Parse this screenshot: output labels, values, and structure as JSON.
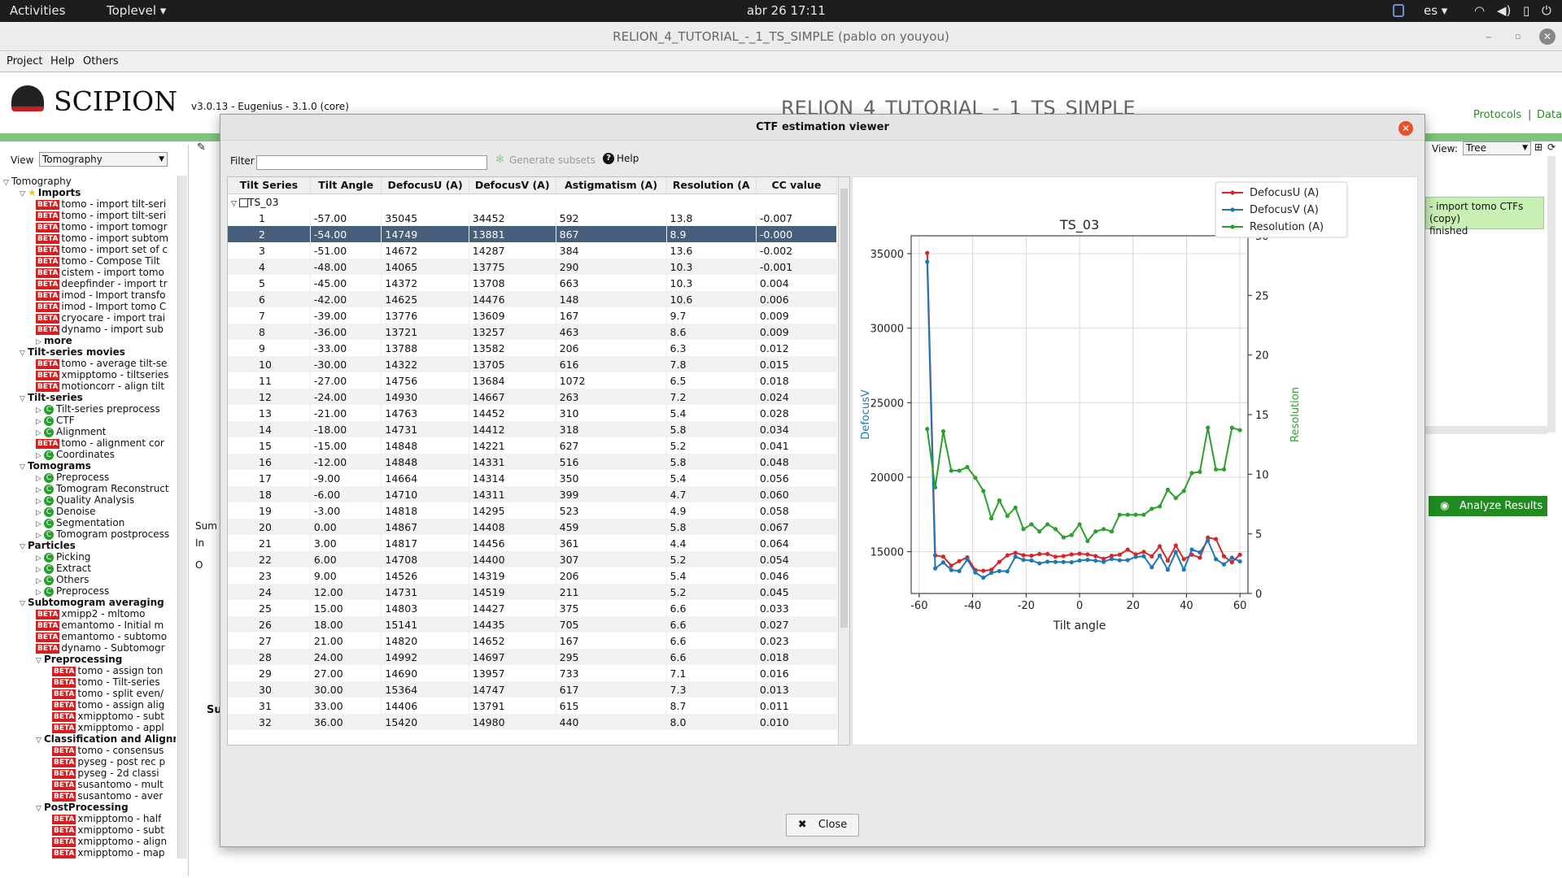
{
  "topbar": {
    "activities": "Activities",
    "app": "Toplevel ▾",
    "clock": "abr 26  17:11",
    "lang": "es ▾"
  },
  "window": {
    "title": "RELION_4_TUTORIAL_-_1_TS_SIMPLE (pablo on youyou)"
  },
  "menu": {
    "project": "Project",
    "help": "Help",
    "others": "Others"
  },
  "header": {
    "logo": "SCIPION",
    "version": "v3.0.13 - Eugenius - 3.1.0 (core)",
    "project_title": "RELION_4_TUTORIAL_-_1_TS_SIMPLE",
    "protocols": "Protocols",
    "sep": "|",
    "data": "Data"
  },
  "left": {
    "view_label": "View",
    "view_value": "Tomography"
  },
  "right": {
    "view_label": "View:",
    "view_value": "Tree",
    "node_text": "- import tomo CTFs (copy)\nfinished",
    "analyze": "Analyze Results",
    "sum": "Sum",
    "in": "In",
    "o": "O",
    "s": "Su"
  },
  "tree": [
    {
      "lvl": 0,
      "tri": "▽",
      "text": "Tomography"
    },
    {
      "lvl": 1,
      "tri": "▽",
      "icon": "star",
      "text": "Imports",
      "bold": true
    },
    {
      "lvl": 2,
      "beta": true,
      "text": "tomo - import tilt-seri"
    },
    {
      "lvl": 2,
      "beta": true,
      "text": "tomo - import tilt-seri"
    },
    {
      "lvl": 2,
      "beta": true,
      "text": "tomo - import tomogr"
    },
    {
      "lvl": 2,
      "beta": true,
      "text": "tomo - import subtom"
    },
    {
      "lvl": 2,
      "beta": true,
      "text": "tomo - import set of c"
    },
    {
      "lvl": 2,
      "beta": true,
      "text": "tomo - Compose Tilt"
    },
    {
      "lvl": 2,
      "beta": true,
      "text": "cistem - import tomo"
    },
    {
      "lvl": 2,
      "beta": true,
      "text": "deepfinder - import tr"
    },
    {
      "lvl": 2,
      "beta": true,
      "text": "imod - Import transfo"
    },
    {
      "lvl": 2,
      "beta": true,
      "text": "imod - Import tomo C"
    },
    {
      "lvl": 2,
      "beta": true,
      "text": "cryocare - import trai"
    },
    {
      "lvl": 2,
      "beta": true,
      "text": "dynamo - import sub"
    },
    {
      "lvl": 2,
      "tri": "▷",
      "text": "more",
      "bold": true
    },
    {
      "lvl": 1,
      "tri": "▽",
      "text": "Tilt-series movies",
      "bold": true
    },
    {
      "lvl": 2,
      "beta": true,
      "text": "tomo - average tilt-se"
    },
    {
      "lvl": 2,
      "beta": true,
      "text": "xmipptomo - tiltseries"
    },
    {
      "lvl": 2,
      "beta": true,
      "text": "motioncorr - align tilt"
    },
    {
      "lvl": 1,
      "tri": "▽",
      "text": "Tilt-series",
      "bold": true
    },
    {
      "lvl": 2,
      "tri": "▷",
      "c": true,
      "text": "Tilt-series preprocess"
    },
    {
      "lvl": 2,
      "tri": "▷",
      "c": true,
      "text": "CTF"
    },
    {
      "lvl": 2,
      "tri": "▷",
      "c": true,
      "text": "Alignment"
    },
    {
      "lvl": 2,
      "beta": true,
      "text": "tomo - alignment cor"
    },
    {
      "lvl": 2,
      "tri": "▷",
      "c": true,
      "text": "Coordinates"
    },
    {
      "lvl": 1,
      "tri": "▽",
      "text": "Tomograms",
      "bold": true
    },
    {
      "lvl": 2,
      "tri": "▷",
      "c": true,
      "text": "Preprocess"
    },
    {
      "lvl": 2,
      "tri": "▷",
      "c": true,
      "text": "Tomogram Reconstruct"
    },
    {
      "lvl": 2,
      "tri": "▷",
      "c": true,
      "text": "Quality Analysis"
    },
    {
      "lvl": 2,
      "tri": "▷",
      "c": true,
      "text": "Denoise"
    },
    {
      "lvl": 2,
      "tri": "▷",
      "c": true,
      "text": "Segmentation"
    },
    {
      "lvl": 2,
      "tri": "▷",
      "c": true,
      "text": "Tomogram postprocess"
    },
    {
      "lvl": 1,
      "tri": "▽",
      "text": "Particles",
      "bold": true
    },
    {
      "lvl": 2,
      "tri": "▷",
      "c": true,
      "text": "Picking"
    },
    {
      "lvl": 2,
      "tri": "▷",
      "c": true,
      "text": "Extract"
    },
    {
      "lvl": 2,
      "tri": "▷",
      "c": true,
      "text": "Others"
    },
    {
      "lvl": 2,
      "tri": "▷",
      "c": true,
      "text": "Preprocess"
    },
    {
      "lvl": 1,
      "tri": "▽",
      "text": "Subtomogram averaging",
      "bold": true
    },
    {
      "lvl": 2,
      "beta": true,
      "text": "xmipp2 - mltomo"
    },
    {
      "lvl": 2,
      "beta": true,
      "text": "emantomo - Initial m"
    },
    {
      "lvl": 2,
      "beta": true,
      "text": "emantomo - subtomo"
    },
    {
      "lvl": 2,
      "beta": true,
      "text": "dynamo - Subtomogr"
    },
    {
      "lvl": 2,
      "tri": "▽",
      "text": "Preprocessing",
      "bold": true
    },
    {
      "lvl": 3,
      "beta": true,
      "text": "tomo - assign ton"
    },
    {
      "lvl": 3,
      "beta": true,
      "text": "tomo - Tilt-series"
    },
    {
      "lvl": 3,
      "beta": true,
      "text": "tomo - split even/"
    },
    {
      "lvl": 3,
      "beta": true,
      "text": "tomo - assign alig"
    },
    {
      "lvl": 3,
      "beta": true,
      "text": "xmipptomo - subt"
    },
    {
      "lvl": 3,
      "beta": true,
      "text": "xmipptomo - appl"
    },
    {
      "lvl": 2,
      "tri": "▽",
      "text": "Classification and Alignm",
      "bold": true
    },
    {
      "lvl": 3,
      "beta": true,
      "text": "tomo - consensus"
    },
    {
      "lvl": 3,
      "beta": true,
      "text": "pyseg - post rec p"
    },
    {
      "lvl": 3,
      "beta": true,
      "text": "pyseg - 2d classi"
    },
    {
      "lvl": 3,
      "beta": true,
      "text": "susantomo - mult"
    },
    {
      "lvl": 3,
      "beta": true,
      "text": "susantomo - aver"
    },
    {
      "lvl": 2,
      "tri": "▽",
      "text": "PostProcessing",
      "bold": true
    },
    {
      "lvl": 3,
      "beta": true,
      "text": "xmipptomo - half"
    },
    {
      "lvl": 3,
      "beta": true,
      "text": "xmipptomo - subt"
    },
    {
      "lvl": 3,
      "beta": true,
      "text": "xmipptomo - align"
    },
    {
      "lvl": 3,
      "beta": true,
      "text": "xmipptomo - map"
    }
  ],
  "beta_label": "BETA",
  "c_label": "C",
  "dialog": {
    "title": "CTF estimation viewer",
    "filter_label": "Filter",
    "filter_value": "",
    "generate": "Generate subsets",
    "help": "Help",
    "close": "Close"
  },
  "table": {
    "headers": [
      "Tilt Series",
      "Tilt Angle",
      "DefocusU (A)",
      "DefocusV (A)",
      "Astigmatism (A)",
      "Resolution (A",
      "CC value"
    ],
    "group": "TS_03",
    "rows": [
      [
        "1",
        "-57.00",
        "35045",
        "34452",
        "592",
        "13.8",
        "-0.007"
      ],
      [
        "2",
        "-54.00",
        "14749",
        "13881",
        "867",
        "8.9",
        "-0.000"
      ],
      [
        "3",
        "-51.00",
        "14672",
        "14287",
        "384",
        "13.6",
        "-0.002"
      ],
      [
        "4",
        "-48.00",
        "14065",
        "13775",
        "290",
        "10.3",
        "-0.001"
      ],
      [
        "5",
        "-45.00",
        "14372",
        "13708",
        "663",
        "10.3",
        "0.004"
      ],
      [
        "6",
        "-42.00",
        "14625",
        "14476",
        "148",
        "10.6",
        "0.006"
      ],
      [
        "7",
        "-39.00",
        "13776",
        "13609",
        "167",
        "9.7",
        "0.009"
      ],
      [
        "8",
        "-36.00",
        "13721",
        "13257",
        "463",
        "8.6",
        "0.009"
      ],
      [
        "9",
        "-33.00",
        "13788",
        "13582",
        "206",
        "6.3",
        "0.012"
      ],
      [
        "10",
        "-30.00",
        "14322",
        "13705",
        "616",
        "7.8",
        "0.015"
      ],
      [
        "11",
        "-27.00",
        "14756",
        "13684",
        "1072",
        "6.5",
        "0.018"
      ],
      [
        "12",
        "-24.00",
        "14930",
        "14667",
        "263",
        "7.2",
        "0.024"
      ],
      [
        "13",
        "-21.00",
        "14763",
        "14452",
        "310",
        "5.4",
        "0.028"
      ],
      [
        "14",
        "-18.00",
        "14731",
        "14412",
        "318",
        "5.8",
        "0.034"
      ],
      [
        "15",
        "-15.00",
        "14848",
        "14221",
        "627",
        "5.2",
        "0.041"
      ],
      [
        "16",
        "-12.00",
        "14848",
        "14331",
        "516",
        "5.8",
        "0.048"
      ],
      [
        "17",
        "-9.00",
        "14664",
        "14314",
        "350",
        "5.4",
        "0.056"
      ],
      [
        "18",
        "-6.00",
        "14710",
        "14311",
        "399",
        "4.7",
        "0.060"
      ],
      [
        "19",
        "-3.00",
        "14818",
        "14295",
        "523",
        "4.9",
        "0.058"
      ],
      [
        "20",
        "0.00",
        "14867",
        "14408",
        "459",
        "5.8",
        "0.067"
      ],
      [
        "21",
        "3.00",
        "14817",
        "14456",
        "361",
        "4.4",
        "0.064"
      ],
      [
        "22",
        "6.00",
        "14708",
        "14400",
        "307",
        "5.2",
        "0.054"
      ],
      [
        "23",
        "9.00",
        "14526",
        "14319",
        "206",
        "5.4",
        "0.046"
      ],
      [
        "24",
        "12.00",
        "14731",
        "14519",
        "211",
        "5.2",
        "0.045"
      ],
      [
        "25",
        "15.00",
        "14803",
        "14427",
        "375",
        "6.6",
        "0.033"
      ],
      [
        "26",
        "18.00",
        "15141",
        "14435",
        "705",
        "6.6",
        "0.027"
      ],
      [
        "27",
        "21.00",
        "14820",
        "14652",
        "167",
        "6.6",
        "0.023"
      ],
      [
        "28",
        "24.00",
        "14992",
        "14697",
        "295",
        "6.6",
        "0.018"
      ],
      [
        "29",
        "27.00",
        "14690",
        "13957",
        "733",
        "7.1",
        "0.016"
      ],
      [
        "30",
        "30.00",
        "15364",
        "14747",
        "617",
        "7.3",
        "0.013"
      ],
      [
        "31",
        "33.00",
        "14406",
        "13791",
        "615",
        "8.7",
        "0.011"
      ],
      [
        "32",
        "36.00",
        "15420",
        "14980",
        "440",
        "8.0",
        "0.010"
      ]
    ],
    "selected_row": 1
  },
  "chart_data": {
    "type": "line",
    "title": "TS_03",
    "xlabel": "Tilt angle",
    "ylabel": "DefocusV",
    "y2label": "Resolution",
    "xlim": [
      -63,
      63
    ],
    "xticks": [
      -60,
      -40,
      -20,
      0,
      20,
      40,
      60
    ],
    "ylim": [
      12200,
      36200
    ],
    "yticks": [
      15000,
      20000,
      25000,
      30000,
      35000
    ],
    "y2lim": [
      0,
      30
    ],
    "y2ticks": [
      0,
      5,
      10,
      15,
      20,
      25,
      30
    ],
    "legend": "top-right",
    "grid": true,
    "x": [
      -57,
      -54,
      -51,
      -48,
      -45,
      -42,
      -39,
      -36,
      -33,
      -30,
      -27,
      -24,
      -21,
      -18,
      -15,
      -12,
      -9,
      -6,
      -3,
      0,
      3,
      6,
      9,
      12,
      15,
      18,
      21,
      24,
      27,
      30,
      33,
      36,
      39,
      42,
      45,
      48,
      51,
      54,
      57,
      60
    ],
    "series": [
      {
        "name": "DefocusU (A)",
        "axis": "left",
        "color": "#d62728",
        "values": [
          35045,
          14749,
          14672,
          14065,
          14372,
          14625,
          13776,
          13721,
          13788,
          14322,
          14756,
          14930,
          14763,
          14731,
          14848,
          14848,
          14664,
          14710,
          14818,
          14867,
          14817,
          14708,
          14526,
          14731,
          14803,
          15141,
          14820,
          14992,
          14690,
          15364,
          14406,
          15420,
          14500,
          14800,
          14600,
          15950,
          15850,
          14700,
          14300,
          14800
        ]
      },
      {
        "name": "DefocusV (A)",
        "axis": "left",
        "color": "#1f77b4",
        "values": [
          34452,
          13881,
          14287,
          13775,
          13708,
          14476,
          13609,
          13257,
          13582,
          13705,
          13684,
          14667,
          14452,
          14412,
          14221,
          14331,
          14314,
          14311,
          14295,
          14408,
          14456,
          14400,
          14319,
          14519,
          14427,
          14435,
          14652,
          14697,
          13957,
          14747,
          13791,
          14980,
          13800,
          15150,
          14950,
          15750,
          14500,
          14150,
          14600,
          14350
        ]
      },
      {
        "name": "Resolution (A)",
        "axis": "right",
        "color": "#2ca02c",
        "values": [
          13.8,
          8.9,
          13.6,
          10.3,
          10.3,
          10.6,
          9.7,
          8.6,
          6.3,
          7.8,
          6.5,
          7.2,
          5.4,
          5.8,
          5.2,
          5.8,
          5.4,
          4.7,
          4.9,
          5.8,
          4.4,
          5.2,
          5.4,
          5.2,
          6.6,
          6.6,
          6.6,
          6.6,
          7.1,
          7.3,
          8.7,
          8.0,
          8.6,
          10.1,
          10.2,
          13.9,
          10.4,
          10.4,
          13.9,
          13.7
        ]
      }
    ]
  }
}
